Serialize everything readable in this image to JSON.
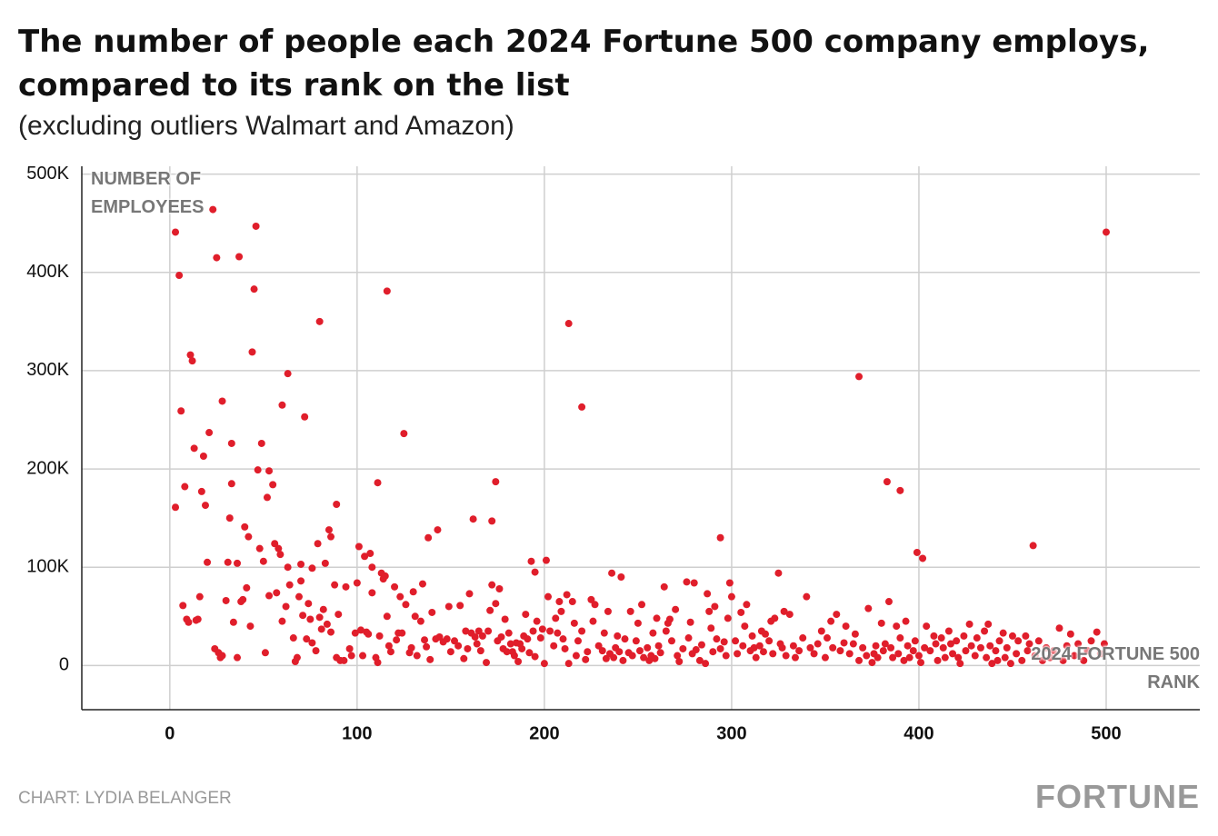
{
  "chart_data": {
    "type": "scatter",
    "title": "The number of people each 2024 Fortune 500 company employs, compared to its rank on the list",
    "subtitle": "(excluding outliers Walmart and Amazon)",
    "y_label": "NUMBER OF EMPLOYEES",
    "x_label": "2024 FORTUNE 500 RANK",
    "credit": "CHART: LYDIA BELANGER",
    "source_logo": "FORTUNE",
    "grid": true,
    "xlim": [
      -47,
      550
    ],
    "ylim": [
      -45000,
      508000
    ],
    "xticks": [
      0,
      100,
      200,
      300,
      400,
      500
    ],
    "yticks": [
      0,
      {
        "value": 100000,
        "label": "100K"
      },
      {
        "value": 200000,
        "label": "200K"
      },
      {
        "value": 300000,
        "label": "300K"
      },
      {
        "value": 400000,
        "label": "400K"
      },
      {
        "value": 500000,
        "label": "500K"
      }
    ],
    "x": [
      3,
      5,
      23,
      46,
      25,
      37,
      45,
      116,
      80,
      213,
      500,
      11,
      12,
      44,
      63,
      368,
      6,
      28,
      60,
      72,
      220,
      125,
      21,
      13,
      33,
      49,
      18,
      47,
      53,
      8,
      3,
      17,
      19,
      33,
      55,
      52,
      111,
      174,
      383,
      390,
      89,
      32,
      40,
      42,
      85,
      86,
      79,
      56,
      58,
      59,
      48,
      50,
      36,
      20,
      162,
      172,
      143,
      138,
      294,
      461,
      101,
      107,
      104,
      108,
      113,
      115,
      201,
      193,
      195,
      399,
      402,
      83,
      76,
      70,
      63,
      236,
      241,
      325,
      7,
      9,
      10,
      14,
      15,
      16,
      24,
      26,
      27,
      28,
      30,
      31,
      34,
      36,
      38,
      39,
      41,
      43,
      51,
      53,
      57,
      60,
      62,
      64,
      66,
      67,
      68,
      69,
      70,
      71,
      73,
      74,
      75,
      76,
      78,
      80,
      81,
      82,
      84,
      86,
      88,
      89,
      90,
      91,
      93,
      94,
      96,
      97,
      99,
      100,
      102,
      103,
      105,
      106,
      108,
      110,
      111,
      112,
      114,
      116,
      117,
      118,
      120,
      121,
      122,
      123,
      124,
      126,
      128,
      129,
      130,
      131,
      132,
      134,
      135,
      136,
      137,
      139,
      140,
      142,
      144,
      146,
      148,
      149,
      150,
      152,
      154,
      155,
      157,
      158,
      159,
      160,
      161,
      163,
      164,
      165,
      166,
      167,
      169,
      170,
      171,
      172,
      174,
      175,
      176,
      177,
      178,
      179,
      180,
      181,
      182,
      183,
      184,
      185,
      186,
      187,
      188,
      189,
      190,
      191,
      192,
      194,
      195,
      196,
      198,
      199,
      200,
      202,
      203,
      205,
      206,
      207,
      208,
      209,
      210,
      211,
      212,
      213,
      215,
      216,
      217,
      218,
      220,
      222,
      223,
      225,
      226,
      227,
      229,
      231,
      232,
      233,
      234,
      235,
      237,
      238,
      239,
      240,
      242,
      243,
      245,
      246,
      247,
      249,
      250,
      251,
      252,
      253,
      255,
      256,
      257,
      258,
      259,
      260,
      261,
      262,
      264,
      265,
      266,
      267,
      268,
      270,
      271,
      272,
      274,
      276,
      277,
      278,
      279,
      280,
      281,
      283,
      284,
      286,
      287,
      288,
      289,
      290,
      291,
      292,
      294,
      296,
      297,
      298,
      299,
      300,
      302,
      303,
      305,
      306,
      307,
      308,
      310,
      311,
      312,
      313,
      315,
      316,
      317,
      318,
      320,
      321,
      322,
      323,
      326,
      327,
      328,
      329,
      331,
      333,
      334,
      336,
      338,
      340,
      342,
      344,
      346,
      348,
      350,
      351,
      353,
      354,
      356,
      358,
      360,
      361,
      363,
      365,
      366,
      368,
      370,
      372,
      373,
      375,
      376,
      377,
      378,
      380,
      381,
      382,
      384,
      385,
      386,
      388,
      389,
      390,
      392,
      393,
      394,
      395,
      397,
      398,
      400,
      401,
      403,
      404,
      406,
      408,
      409,
      410,
      412,
      413,
      414,
      416,
      417,
      418,
      420,
      421,
      422,
      424,
      425,
      427,
      428,
      430,
      431,
      433,
      435,
      436,
      437,
      438,
      439,
      441,
      442,
      443,
      445,
      446,
      447,
      449,
      450,
      452,
      453,
      455,
      457,
      458,
      459,
      462,
      464,
      466,
      468,
      470,
      472,
      475,
      477,
      479,
      481,
      483,
      485,
      488,
      490,
      492,
      495,
      497,
      499
    ],
    "series": [
      {
        "name": "Companies",
        "color": "#e01e2b",
        "values": [
          441000,
          397000,
          464000,
          447000,
          415000,
          416000,
          383000,
          381000,
          350000,
          348000,
          441000,
          316000,
          310000,
          319000,
          297000,
          294000,
          259000,
          269000,
          265000,
          253000,
          263000,
          236000,
          237000,
          221000,
          226000,
          226000,
          213000,
          199000,
          198000,
          182000,
          161000,
          177000,
          163000,
          185000,
          184000,
          171000,
          186000,
          187000,
          187000,
          178000,
          164000,
          150000,
          141000,
          131000,
          138000,
          131000,
          124000,
          124000,
          119000,
          113000,
          119000,
          106000,
          104000,
          105000,
          149000,
          147000,
          138000,
          130000,
          130000,
          122000,
          121000,
          114000,
          111000,
          100000,
          94000,
          91000,
          107000,
          106000,
          95000,
          115000,
          109000,
          104000,
          99000,
          103000,
          100000,
          94000,
          90000,
          94000,
          61000,
          47000,
          44000,
          46000,
          47000,
          70000,
          17000,
          13000,
          8000,
          10000,
          66000,
          105000,
          44000,
          8000,
          65000,
          67000,
          79000,
          40000,
          13000,
          71000,
          74000,
          45000,
          60000,
          82000,
          28000,
          4000,
          8000,
          70000,
          86000,
          51000,
          27000,
          63000,
          47000,
          23000,
          15000,
          49000,
          37000,
          57000,
          42000,
          34000,
          82000,
          8000,
          52000,
          5000,
          5000,
          80000,
          17000,
          10000,
          33000,
          84000,
          36000,
          10000,
          34000,
          32000,
          74000,
          8000,
          3000,
          30000,
          88000,
          50000,
          20000,
          14000,
          80000,
          26000,
          33000,
          70000,
          33000,
          62000,
          13000,
          18000,
          75000,
          50000,
          10000,
          45000,
          83000,
          26000,
          19000,
          6000,
          54000,
          27000,
          29000,
          24000,
          27000,
          60000,
          14000,
          25000,
          20000,
          61000,
          7000,
          35000,
          17000,
          73000,
          33000,
          29000,
          22000,
          35000,
          15000,
          30000,
          3000,
          35000,
          56000,
          82000,
          63000,
          25000,
          78000,
          29000,
          17000,
          47000,
          14000,
          33000,
          22000,
          14000,
          10000,
          23000,
          4000,
          22000,
          17000,
          30000,
          52000,
          27000,
          13000,
          35000,
          9000,
          45000,
          28000,
          37000,
          2000,
          70000,
          35000,
          20000,
          48000,
          33000,
          65000,
          55000,
          27000,
          17000,
          72000,
          2000,
          65000,
          43000,
          10000,
          25000,
          35000,
          6000,
          14000,
          67000,
          45000,
          62000,
          20000,
          15000,
          33000,
          7000,
          55000,
          12000,
          8000,
          18000,
          30000,
          14000,
          5000,
          27000,
          13000,
          55000,
          10000,
          25000,
          43000,
          15000,
          62000,
          8000,
          18000,
          5000,
          10000,
          33000,
          7000,
          48000,
          20000,
          13000,
          80000,
          35000,
          43000,
          47000,
          25000,
          57000,
          10000,
          4000,
          17000,
          85000,
          28000,
          44000,
          12000,
          84000,
          16000,
          5000,
          21000,
          2000,
          73000,
          55000,
          38000,
          14000,
          60000,
          27000,
          17000,
          24000,
          10000,
          48000,
          84000,
          70000,
          25000,
          12000,
          54000,
          20000,
          40000,
          62000,
          15000,
          30000,
          18000,
          8000,
          20000,
          35000,
          14000,
          32000,
          25000,
          45000,
          12000,
          48000,
          22000,
          18000,
          55000,
          10000,
          52000,
          20000,
          8000,
          15000,
          28000,
          70000,
          18000,
          12000,
          22000,
          35000,
          8000,
          28000,
          45000,
          18000,
          52000,
          15000,
          23000,
          40000,
          12000,
          22000,
          32000,
          5000,
          18000,
          10000,
          58000,
          3000,
          12000,
          20000,
          8000,
          43000,
          15000,
          22000,
          65000,
          18000,
          8000,
          40000,
          12000,
          28000,
          5000,
          45000,
          20000,
          8000,
          15000,
          25000,
          10000,
          3000,
          18000,
          40000,
          15000,
          30000,
          22000,
          5000,
          28000,
          18000,
          8000,
          35000,
          22000,
          12000,
          25000,
          8000,
          2000,
          30000,
          15000,
          42000,
          20000,
          10000,
          28000,
          18000,
          35000,
          8000,
          42000,
          20000,
          2000,
          15000,
          5000,
          25000,
          33000,
          8000,
          18000,
          2000,
          30000,
          12000,
          25000,
          5000,
          30000,
          15000,
          22000,
          10000,
          25000,
          5000,
          18000,
          8000,
          15000,
          38000,
          5000,
          20000,
          32000,
          10000,
          22000,
          5000,
          15000,
          25000,
          34000,
          12000,
          22000
        ]
      }
    ]
  }
}
